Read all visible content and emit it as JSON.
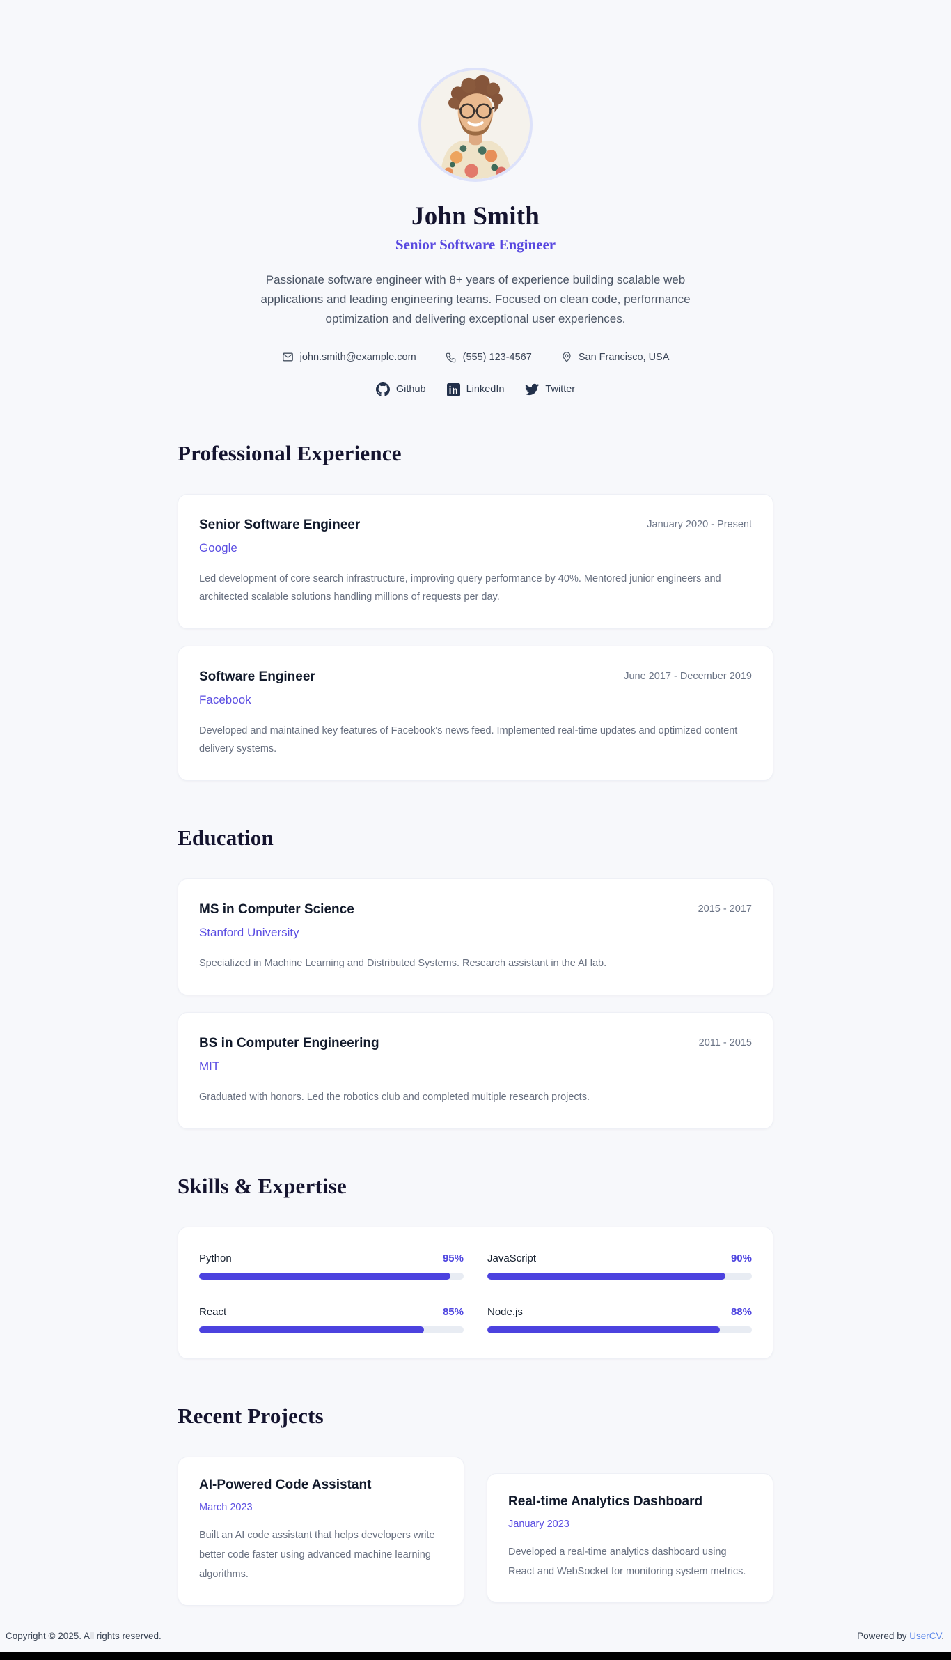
{
  "profile": {
    "name": "John Smith",
    "title": "Senior Software Engineer",
    "bio": "Passionate software engineer with 8+ years of experience building scalable web applications and leading engineering teams. Focused on clean code, performance optimization and delivering exceptional user experiences.",
    "contacts": [
      {
        "type": "email",
        "label": "john.smith@example.com"
      },
      {
        "type": "phone",
        "label": "(555) 123-4567"
      },
      {
        "type": "location",
        "label": "San Francisco, USA"
      }
    ],
    "socials": [
      {
        "name": "github",
        "label": "Github"
      },
      {
        "name": "linkedin",
        "label": "LinkedIn"
      },
      {
        "name": "twitter",
        "label": "Twitter"
      }
    ]
  },
  "sections": {
    "experience": {
      "title": "Professional Experience",
      "items": [
        {
          "role": "Senior Software Engineer",
          "company": "Google",
          "period": "January 2020 - Present",
          "description": "Led development of core search infrastructure, improving query performance by 40%. Mentored junior engineers and architected scalable solutions handling millions of requests per day."
        },
        {
          "role": "Software Engineer",
          "company": "Facebook",
          "period": "June 2017 - December 2019",
          "description": "Developed and maintained key features of Facebook's news feed. Implemented real-time updates and optimized content delivery systems."
        }
      ]
    },
    "education": {
      "title": "Education",
      "items": [
        {
          "degree": "MS in Computer Science",
          "school": "Stanford University",
          "period": "2015 - 2017",
          "description": "Specialized in Machine Learning and Distributed Systems. Research assistant in the AI lab."
        },
        {
          "degree": "BS in Computer Engineering",
          "school": "MIT",
          "period": "2011 - 2015",
          "description": "Graduated with honors. Led the robotics club and completed multiple research projects."
        }
      ]
    },
    "skills": {
      "title": "Skills & Expertise",
      "items": [
        {
          "name": "Python",
          "percent": 95,
          "percent_label": "95%"
        },
        {
          "name": "JavaScript",
          "percent": 90,
          "percent_label": "90%"
        },
        {
          "name": "React",
          "percent": 85,
          "percent_label": "85%"
        },
        {
          "name": "Node.js",
          "percent": 88,
          "percent_label": "88%"
        }
      ]
    },
    "projects": {
      "title": "Recent Projects",
      "items": [
        {
          "name": "AI-Powered Code Assistant",
          "date": "March 2023",
          "description": "Built an AI code assistant that helps developers write better code faster using advanced machine learning algorithms."
        },
        {
          "name": "Real-time Analytics Dashboard",
          "date": "January 2023",
          "description": "Developed a real-time analytics dashboard using React and WebSocket for monitoring system metrics."
        }
      ]
    }
  },
  "footer": {
    "copyright": "Copyright © 2025. All rights reserved.",
    "powered_prefix": "Powered by ",
    "powered_link": "UserCV",
    "powered_suffix": "."
  },
  "colors": {
    "accent": "#5b4ee2",
    "bar_fill": "#4c42df",
    "bar_track": "#e8ecf3",
    "footer_link": "#5b87ea",
    "background": "#f7f8fb"
  }
}
